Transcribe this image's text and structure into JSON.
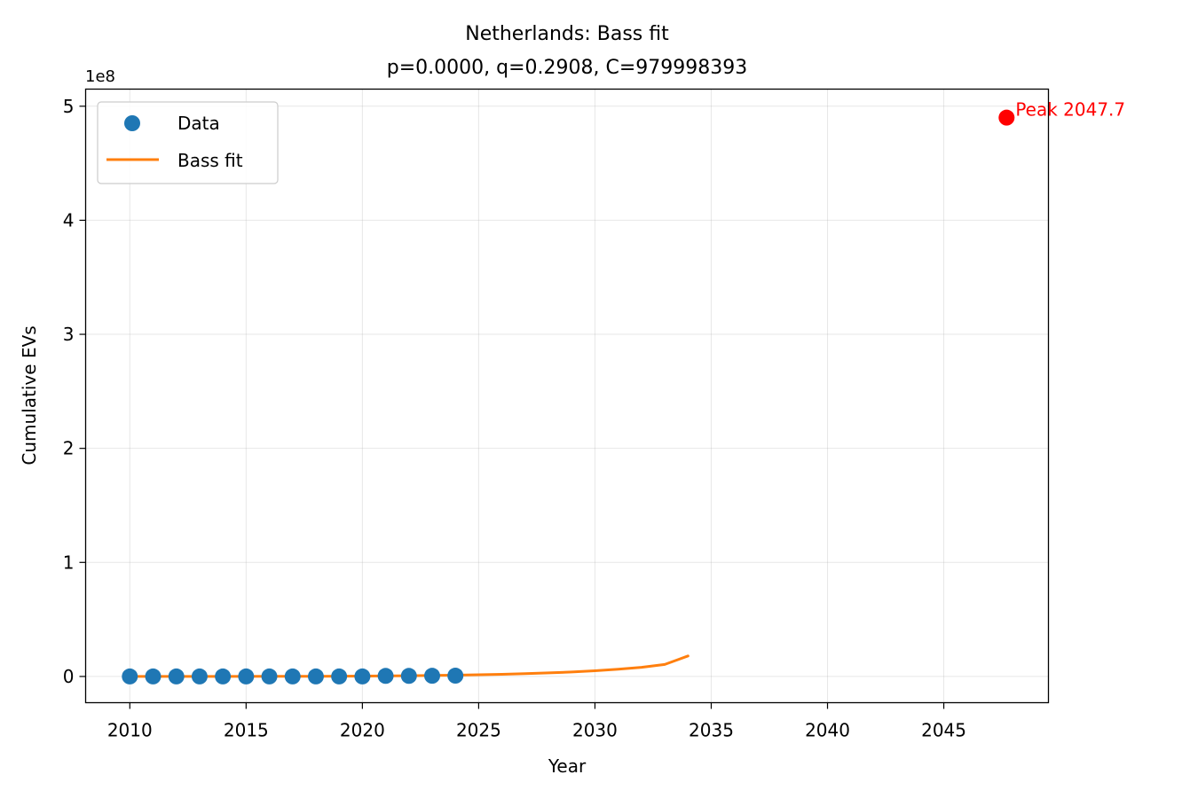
{
  "chart_data": {
    "type": "scatter",
    "title": "Netherlands: Bass fit",
    "subtitle": "p=0.0000, q=0.2908, C=979998393",
    "xlabel": "Year",
    "ylabel": "Cumulative EVs",
    "y_offset_label": "1e8",
    "xlim": [
      2008.1,
      2049.5
    ],
    "ylim": [
      -0.23,
      5.15
    ],
    "y_scale_note": "values in units of 1e8",
    "x_ticks": [
      2010,
      2015,
      2020,
      2025,
      2030,
      2035,
      2040,
      2045
    ],
    "y_ticks": [
      0,
      1,
      2,
      3,
      4,
      5
    ],
    "grid": true,
    "legend_position": "upper-left",
    "series": [
      {
        "name": "Data",
        "kind": "scatter",
        "color": "#1f77b4",
        "x": [
          2010,
          2011,
          2012,
          2013,
          2014,
          2015,
          2016,
          2017,
          2018,
          2019,
          2020,
          2021,
          2022,
          2023,
          2024
        ],
        "y": [
          0.0,
          0.0,
          0.0,
          0.0,
          0.0,
          0.0,
          0.0,
          0.0,
          0.0,
          0.0,
          0.0,
          0.005,
          0.005,
          0.006,
          0.007
        ]
      },
      {
        "name": "Bass fit",
        "kind": "line",
        "color": "#ff7f0e",
        "x": [
          2010,
          2012,
          2014,
          2016,
          2018,
          2020,
          2022,
          2024,
          2025,
          2026,
          2027,
          2028,
          2029,
          2030,
          2031,
          2032,
          2033,
          2034
        ],
        "y": [
          0.0,
          0.0,
          0.0,
          0.001,
          0.002,
          0.003,
          0.006,
          0.011,
          0.015,
          0.019,
          0.025,
          0.031,
          0.039,
          0.05,
          0.063,
          0.08,
          0.105,
          0.18
        ]
      }
    ],
    "annotation": {
      "text": "Peak 2047.7",
      "x": 2047.7,
      "y": 4.9,
      "color": "#ff0000"
    }
  }
}
